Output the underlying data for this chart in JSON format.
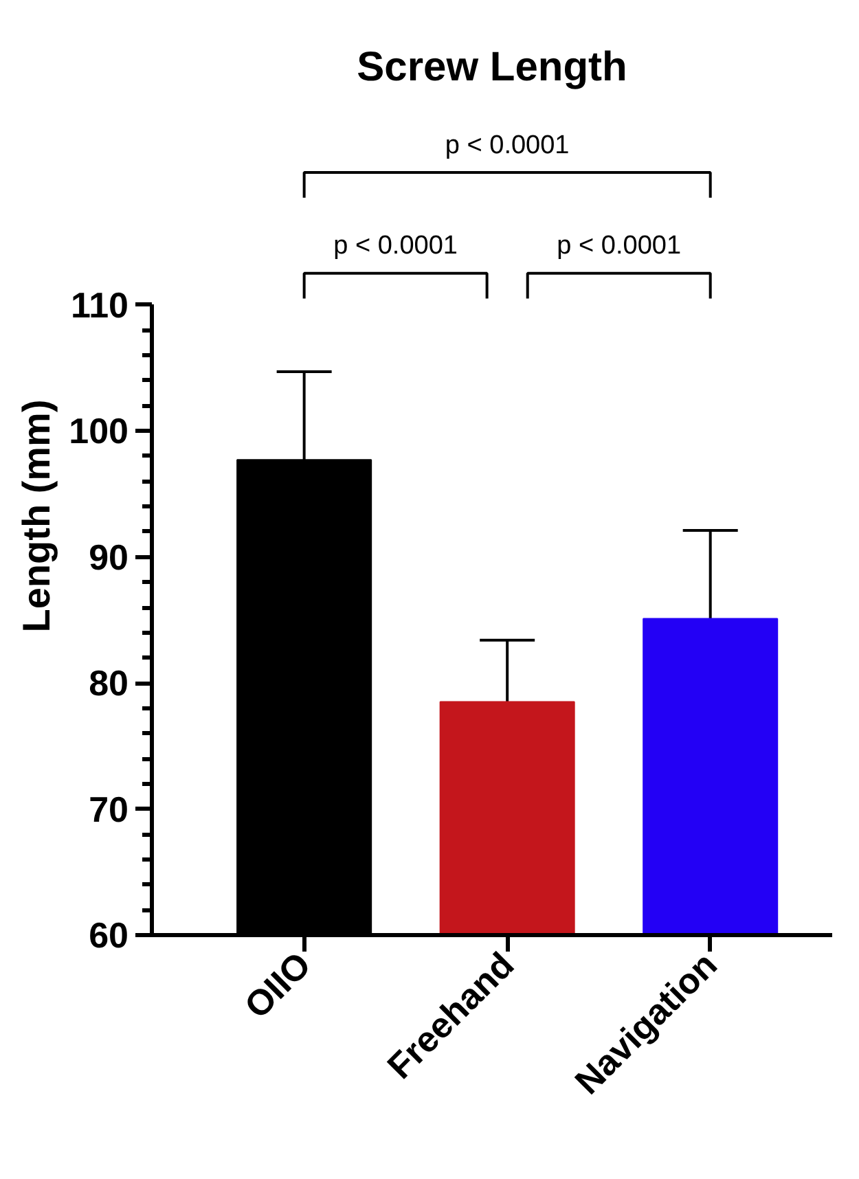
{
  "chart_data": {
    "type": "bar",
    "title": "Screw Length",
    "ylabel": "Length (mm)",
    "categories": [
      "OIIO",
      "Freehand",
      "Navigation"
    ],
    "values": [
      97.7,
      78.5,
      85.1
    ],
    "colors": [
      "#000000",
      "#c4161c",
      "#2300f5"
    ],
    "errors": [
      [
        97.7,
        104.7
      ],
      [
        78.5,
        83.4
      ],
      [
        85.1,
        92.1
      ]
    ],
    "ylim": [
      60,
      110
    ],
    "yticks": [
      60,
      70,
      80,
      90,
      100,
      110
    ],
    "grid": false,
    "annotations": [
      "p < 0.0001",
      "p < 0.0001",
      "p < 0.0001"
    ]
  }
}
